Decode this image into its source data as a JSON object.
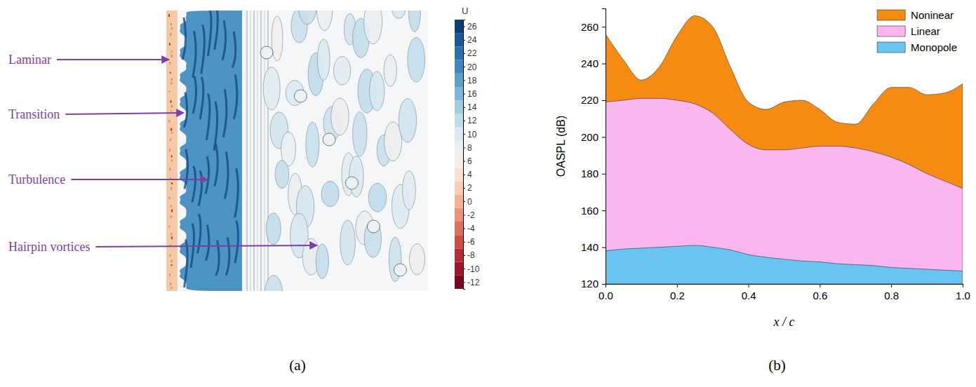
{
  "chart_data": [
    {
      "type": "image",
      "caption": "(a)",
      "annotations": [
        "Laminar",
        "Transition",
        "Turbulence",
        "Hairpin vortices"
      ],
      "colorbar": {
        "title": "U",
        "range": [
          -13,
          27
        ],
        "ticks": [
          -12,
          -10,
          -8,
          -6,
          -4,
          -2,
          0,
          2,
          4,
          6,
          8,
          10,
          12,
          14,
          16,
          18,
          20,
          22,
          24,
          26
        ]
      }
    },
    {
      "type": "area",
      "caption": "(b)",
      "xlabel": "x / c",
      "ylabel": "OASPL (dB)",
      "stacked": false,
      "grid": false,
      "legend": "upper right",
      "x": [
        0,
        0.05,
        0.1,
        0.15,
        0.2,
        0.25,
        0.3,
        0.35,
        0.4,
        0.45,
        0.5,
        0.55,
        0.6,
        0.65,
        0.7,
        0.75,
        0.8,
        0.85,
        0.9,
        0.95,
        1
      ],
      "series": [
        {
          "name": "Noninear",
          "color": "#f68b12",
          "values": [
            256,
            242,
            231,
            238,
            255,
            266,
            260,
            238,
            219,
            215,
            219,
            220,
            215,
            208,
            207,
            218,
            227,
            227,
            223,
            224,
            229
          ]
        },
        {
          "name": "Linear",
          "color": "#fbb5ef",
          "values": [
            219,
            220,
            221,
            221,
            220,
            218,
            213,
            204,
            196,
            193,
            193,
            194,
            195,
            195,
            194,
            192,
            189,
            185,
            180,
            176,
            172
          ]
        },
        {
          "name": "Monopole",
          "color": "#68c4f1",
          "values": [
            138,
            139,
            139.5,
            140,
            140.5,
            141,
            140,
            138.5,
            136,
            134.5,
            133.5,
            132.5,
            132,
            131,
            130.5,
            130,
            129,
            128.5,
            128,
            127.5,
            127
          ]
        }
      ],
      "xlim": [
        0,
        1
      ],
      "ylim": [
        120,
        270
      ],
      "xticks": [
        {
          "value": 0,
          "label": "0.0"
        },
        0.2,
        0.4,
        0.6,
        0.8,
        {
          "value": 1,
          "label": "1.0"
        }
      ],
      "yticks": [
        120,
        140,
        160,
        180,
        200,
        220,
        240,
        260
      ]
    }
  ]
}
